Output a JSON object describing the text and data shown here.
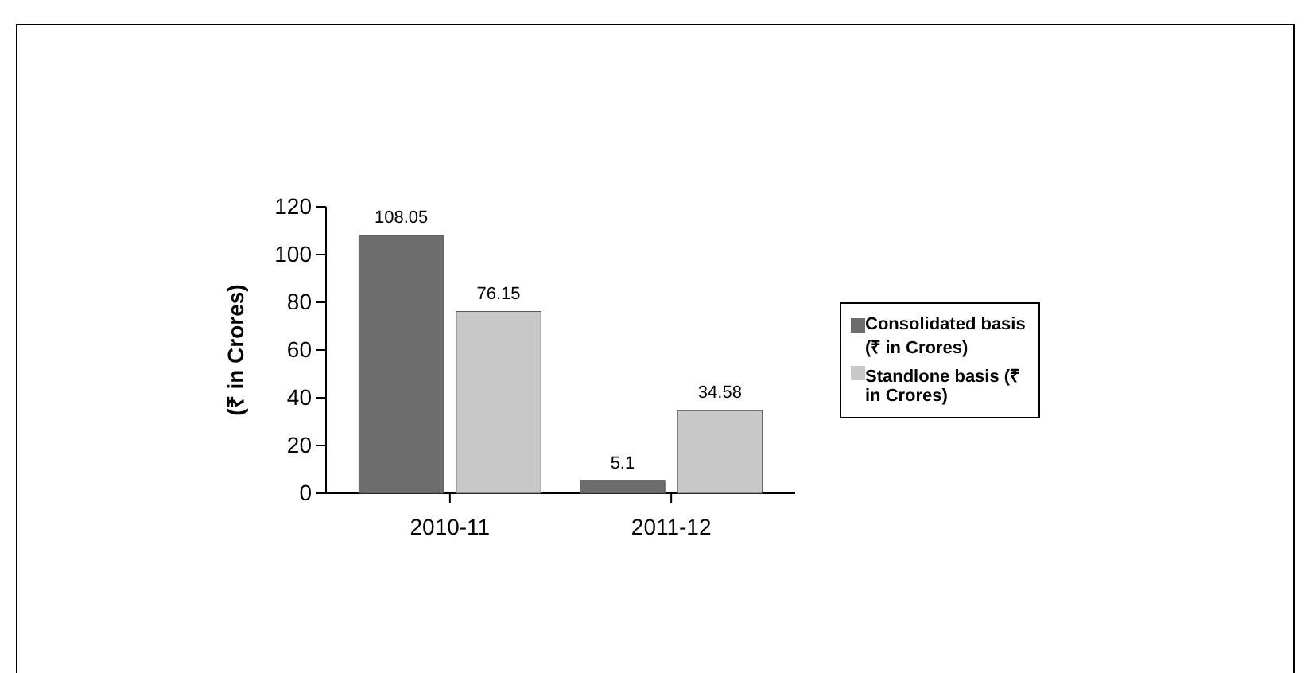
{
  "chart_data": {
    "type": "bar",
    "ylabel": "(₹ in Crores)",
    "categories": [
      "2010-11",
      "2011-12"
    ],
    "series": [
      {
        "name": "Consolidated basis (₹ in Crores)",
        "color": "#6d6d6d",
        "values": [
          108.05,
          5.1
        ]
      },
      {
        "name": "Standlone basis (₹ in Crores)",
        "color": "#c8c8c8",
        "values": [
          76.15,
          34.58
        ]
      }
    ],
    "ylim": [
      0,
      120
    ],
    "yticks": [
      0,
      20,
      40,
      60,
      80,
      100,
      120
    ],
    "data_labels": true,
    "legend": "right"
  }
}
